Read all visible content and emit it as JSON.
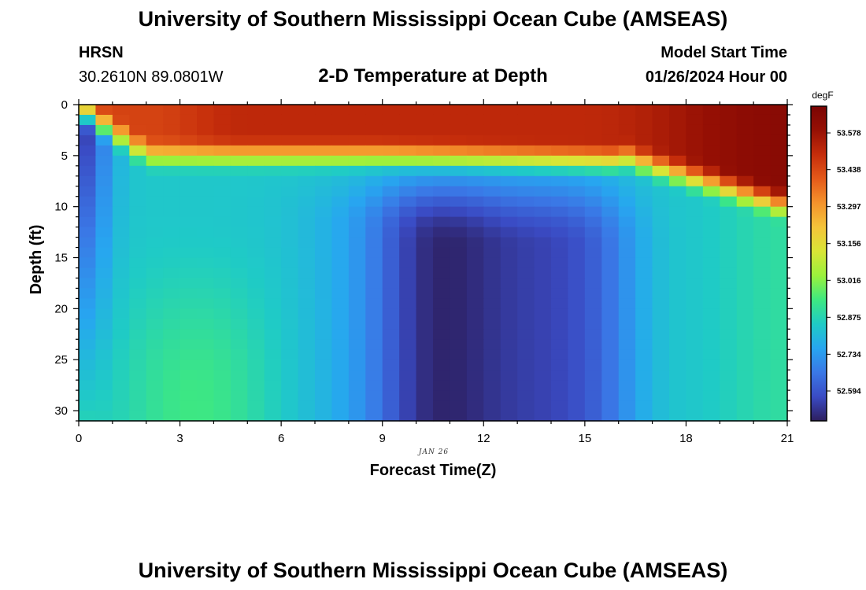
{
  "header": {
    "title_top": "University of Southern Mississippi Ocean Cube (AMSEAS)",
    "title_bottom": "University of Southern Mississippi Ocean Cube (AMSEAS)",
    "station": "HRSN",
    "coords": "30.2610N  89.0801W",
    "plot_title": "2-D Temperature at Depth",
    "model_start_label": "Model Start Time",
    "model_start_value": "01/26/2024 Hour 00"
  },
  "chart_data": {
    "type": "heatmap",
    "title": "2-D Temperature at Depth",
    "xlabel": "Forecast Time(Z)",
    "ylabel": "Depth (ft)",
    "date_label": "JAN 26",
    "x_ticks": [
      0,
      3,
      6,
      9,
      12,
      15,
      18,
      21
    ],
    "y_ticks": [
      0,
      5,
      10,
      15,
      20,
      25,
      30
    ],
    "xlim": [
      0,
      21
    ],
    "ylim": [
      0,
      31
    ],
    "x_cells": 42,
    "y_cells": 31,
    "colorbar": {
      "unit": "degF",
      "ticks": [
        53.578,
        53.438,
        53.297,
        53.156,
        53.016,
        52.875,
        52.734,
        52.594
      ],
      "range": [
        52.48,
        53.68
      ],
      "colors": [
        "#2d1e5e",
        "#3a4bc4",
        "#3a78e6",
        "#27a6f0",
        "#1fcbc6",
        "#3ee881",
        "#9af13c",
        "#d9e536",
        "#f4c43a",
        "#f4932c",
        "#e45a1a",
        "#c52d0b",
        "#961004",
        "#7a0403"
      ]
    },
    "values_note": "Temperature field (degF) by forecast hour and depth; warm layer (~53.3–53.7) near surface, cold core (~52.55) from hours 9–16 at depths 12–30 ft, cold column (~52.5) at hour 0"
  }
}
